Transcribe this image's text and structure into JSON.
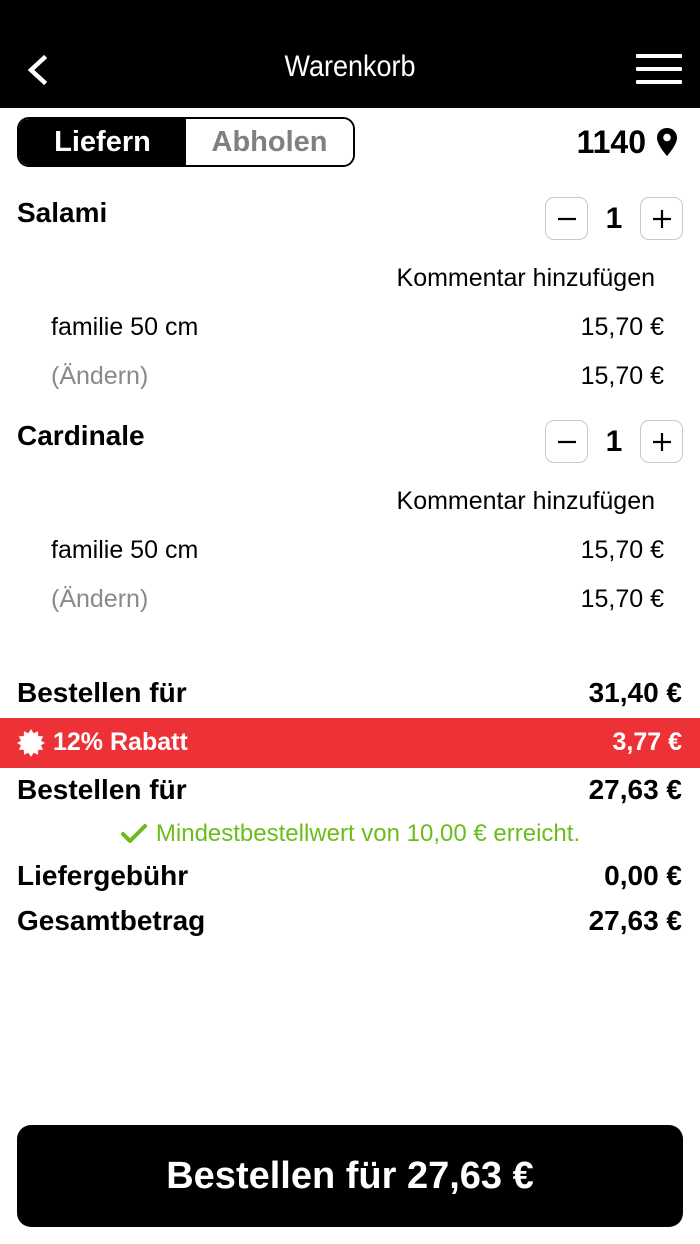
{
  "header": {
    "title": "Warenkorb",
    "back_icon": "chevron-left-icon",
    "menu_icon": "hamburger-menu-icon"
  },
  "delivery_toggle": {
    "options": [
      "Liefern",
      "Abholen"
    ],
    "selected": "Liefern"
  },
  "location": {
    "postal_code": "1140",
    "icon": "location-pin-icon"
  },
  "cart": {
    "items": [
      {
        "name": "Salami",
        "quantity": "1",
        "comment_link": "Kommentar hinzufügen",
        "option_label": "familie 50 cm",
        "option_price": "15,70 €",
        "change_label": "(Ändern)",
        "item_total": "15,70 €"
      },
      {
        "name": "Cardinale",
        "quantity": "1",
        "comment_link": "Kommentar hinzufügen",
        "option_label": "familie 50 cm",
        "option_price": "15,70 €",
        "change_label": "(Ändern)",
        "item_total": "15,70 €"
      }
    ]
  },
  "summary": {
    "subtotal_label": "Bestellen für",
    "subtotal_value": "31,40 €",
    "discount_label": "12% Rabatt",
    "discount_value": "3,77 €",
    "discounted_label": "Bestellen für",
    "discounted_value": "27,63 €",
    "min_order_text": "Mindestbestellwert von 10,00 € erreicht.",
    "delivery_fee_label": "Liefergebühr",
    "delivery_fee_value": "0,00 €",
    "total_label": "Gesamtbetrag",
    "total_value": "27,63 €"
  },
  "checkout_button": {
    "label": "Bestellen für 27,63 €"
  },
  "colors": {
    "header_bg": "#000000",
    "discount_bg": "#ec3237",
    "success_green": "#6cbc1b",
    "muted_grey": "#8a8a8a"
  }
}
